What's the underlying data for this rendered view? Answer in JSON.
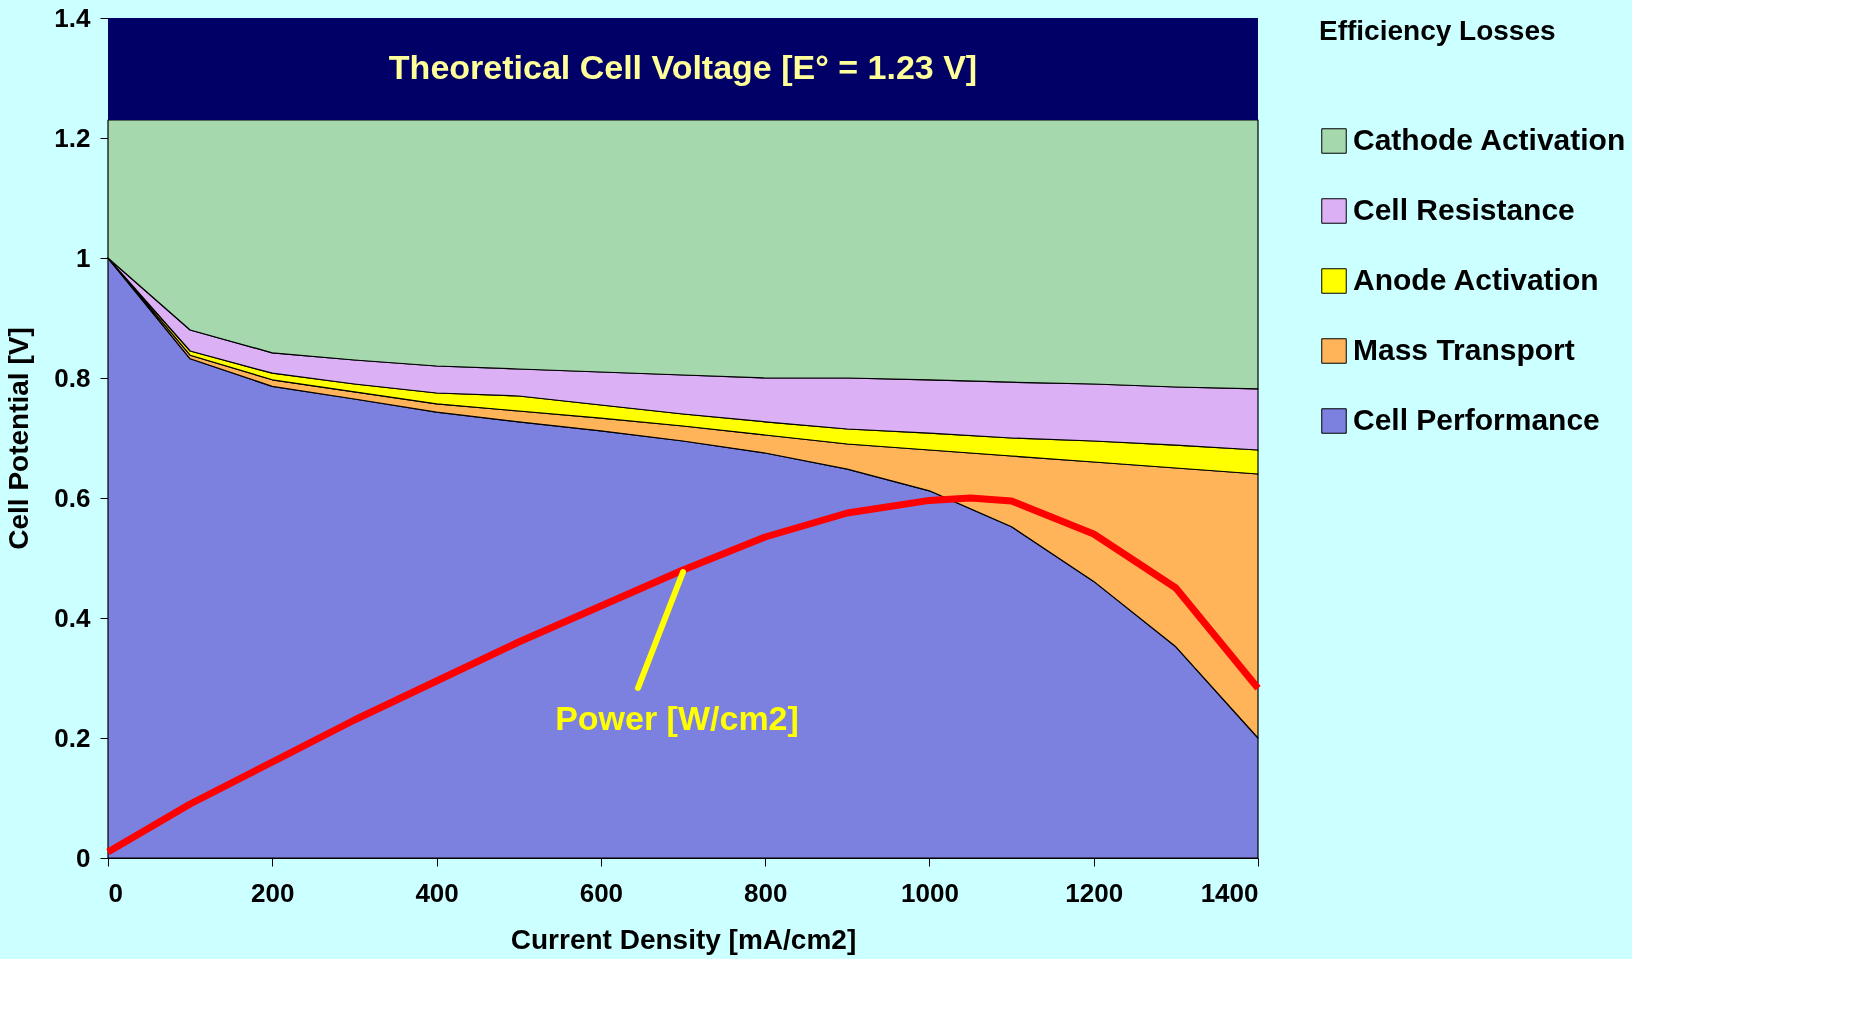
{
  "chart_data": {
    "type": "area",
    "stacked": true,
    "xlabel": "Current Density [mA/cm2]",
    "ylabel": "Cell Potential [V]",
    "legend_title": "Efficiency Losses",
    "legend": "right",
    "grid": false,
    "x": [
      0,
      100,
      200,
      300,
      400,
      500,
      600,
      700,
      800,
      900,
      1000,
      1100,
      1200,
      1300,
      1400
    ],
    "xlim": [
      0,
      1400
    ],
    "xticks": [
      0,
      200,
      400,
      600,
      800,
      1000,
      1200,
      1400
    ],
    "ylim": [
      0,
      1.4
    ],
    "yticks": [
      0,
      0.2,
      0.4,
      0.6,
      0.8,
      1,
      1.2,
      1.4
    ],
    "series": [
      {
        "name": "Cell Performance",
        "color": "#7c80de",
        "values": [
          1.0,
          0.832,
          0.786,
          0.765,
          0.743,
          0.727,
          0.712,
          0.695,
          0.675,
          0.648,
          0.612,
          0.552,
          0.461,
          0.352,
          0.2
        ]
      },
      {
        "name": "Mass Transport",
        "color": "#ffb45a",
        "values": [
          0,
          0.006,
          0.011,
          0.012,
          0.014,
          0.018,
          0.021,
          0.025,
          0.03,
          0.042,
          0.068,
          0.118,
          0.199,
          0.298,
          0.44
        ]
      },
      {
        "name": "Anode Activation",
        "color": "#ffff00",
        "values": [
          0,
          0.007,
          0.011,
          0.013,
          0.018,
          0.025,
          0.022,
          0.02,
          0.022,
          0.025,
          0.028,
          0.03,
          0.035,
          0.038,
          0.04
        ]
      },
      {
        "name": "Cell Resistance",
        "color": "#dcb0f5",
        "values": [
          0,
          0.035,
          0.034,
          0.04,
          0.045,
          0.045,
          0.055,
          0.065,
          0.073,
          0.085,
          0.089,
          0.093,
          0.095,
          0.097,
          0.102
        ]
      },
      {
        "name": "Cathode Activation",
        "color": "#a6d8ae",
        "values": [
          0.23,
          0.35,
          0.388,
          0.4,
          0.41,
          0.415,
          0.42,
          0.425,
          0.43,
          0.43,
          0.433,
          0.437,
          0.44,
          0.445,
          0.448
        ]
      },
      {
        "type": "line",
        "color": "#ff0000",
        "x": [
          0,
          100,
          200,
          300,
          400,
          500,
          600,
          700,
          800,
          900,
          1000,
          1050,
          1100,
          1200,
          1300,
          1400
        ],
        "values": [
          0.01,
          0.09,
          0.16,
          0.23,
          0.295,
          0.36,
          0.42,
          0.48,
          0.535,
          0.575,
          0.596,
          0.6,
          0.595,
          0.54,
          0.45,
          0.283
        ]
      }
    ],
    "bands": [
      {
        "axis": "y",
        "from": 1.23,
        "to": 1.4,
        "label": "Theoretical Cell Voltage [E° = 1.23 V]",
        "color": "#000066"
      }
    ],
    "annotations": [
      {
        "text": "Power [W/cm2]",
        "x": 700,
        "y": 0.48
      }
    ]
  }
}
